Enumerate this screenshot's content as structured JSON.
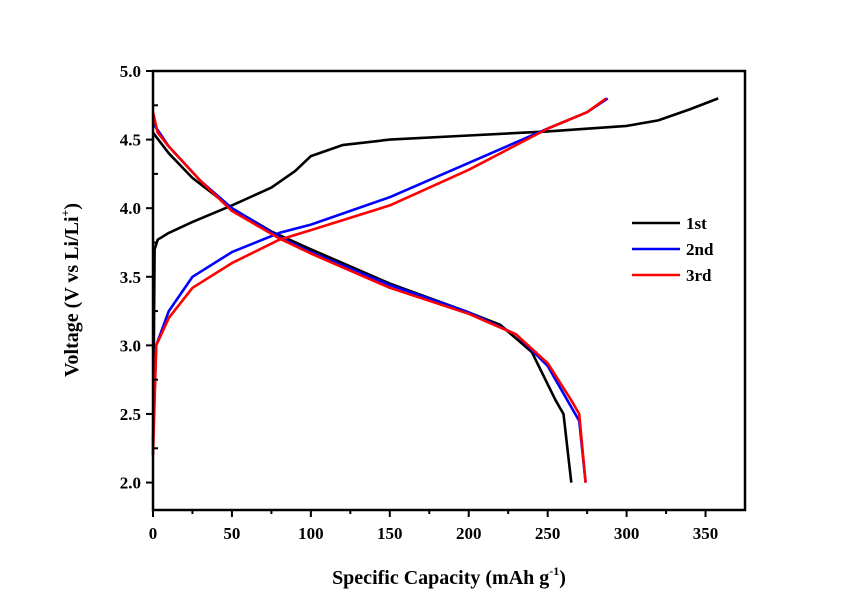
{
  "chart_data": {
    "type": "line",
    "title": "",
    "xlabel": "Specific Capacity (mAh g",
    "xlabel_sup": "-1",
    "xlabel_end": ")",
    "ylabel": "Voltage (V vs Li/Li",
    "ylabel_sup": "+",
    "ylabel_end": ")",
    "xlim": [
      0,
      375
    ],
    "ylim": [
      1.8,
      5.0
    ],
    "xticks": [
      0,
      50,
      100,
      150,
      200,
      250,
      300,
      350
    ],
    "yticks": [
      "2.0",
      "2.5",
      "3.0",
      "3.5",
      "4.0",
      "4.5",
      "5.0"
    ],
    "grid": false,
    "legend_position": "right",
    "series": [
      {
        "name": "1st",
        "color": "#000000",
        "charge": [
          [
            0,
            2.2
          ],
          [
            1,
            3.7
          ],
          [
            3,
            3.77
          ],
          [
            10,
            3.82
          ],
          [
            25,
            3.9
          ],
          [
            50,
            4.02
          ],
          [
            75,
            4.15
          ],
          [
            90,
            4.27
          ],
          [
            100,
            4.38
          ],
          [
            120,
            4.46
          ],
          [
            150,
            4.5
          ],
          [
            200,
            4.53
          ],
          [
            250,
            4.56
          ],
          [
            300,
            4.6
          ],
          [
            320,
            4.64
          ],
          [
            340,
            4.72
          ],
          [
            358,
            4.8
          ]
        ],
        "discharge": [
          [
            0,
            4.55
          ],
          [
            10,
            4.4
          ],
          [
            25,
            4.22
          ],
          [
            50,
            4.0
          ],
          [
            75,
            3.83
          ],
          [
            100,
            3.7
          ],
          [
            150,
            3.45
          ],
          [
            200,
            3.24
          ],
          [
            220,
            3.15
          ],
          [
            240,
            2.95
          ],
          [
            255,
            2.6
          ],
          [
            260,
            2.5
          ],
          [
            265,
            2.0
          ]
        ]
      },
      {
        "name": "2nd",
        "color": "#0000FF",
        "charge": [
          [
            0,
            2.3
          ],
          [
            2,
            3.0
          ],
          [
            10,
            3.25
          ],
          [
            25,
            3.5
          ],
          [
            50,
            3.68
          ],
          [
            80,
            3.82
          ],
          [
            100,
            3.88
          ],
          [
            150,
            4.08
          ],
          [
            200,
            4.33
          ],
          [
            250,
            4.58
          ],
          [
            275,
            4.7
          ],
          [
            288,
            4.8
          ]
        ],
        "discharge": [
          [
            0,
            4.62
          ],
          [
            10,
            4.45
          ],
          [
            30,
            4.2
          ],
          [
            50,
            4.0
          ],
          [
            80,
            3.79
          ],
          [
            100,
            3.68
          ],
          [
            150,
            3.44
          ],
          [
            200,
            3.24
          ],
          [
            230,
            3.08
          ],
          [
            250,
            2.85
          ],
          [
            265,
            2.55
          ],
          [
            270,
            2.45
          ],
          [
            274,
            2.0
          ]
        ]
      },
      {
        "name": "3rd",
        "color": "#FF0000",
        "charge": [
          [
            0,
            2.2
          ],
          [
            2,
            3.0
          ],
          [
            10,
            3.2
          ],
          [
            25,
            3.42
          ],
          [
            50,
            3.6
          ],
          [
            80,
            3.77
          ],
          [
            100,
            3.84
          ],
          [
            150,
            4.02
          ],
          [
            200,
            4.28
          ],
          [
            250,
            4.58
          ],
          [
            275,
            4.7
          ],
          [
            287,
            4.8
          ]
        ],
        "discharge": [
          [
            0,
            4.7
          ],
          [
            3,
            4.55
          ],
          [
            10,
            4.45
          ],
          [
            30,
            4.2
          ],
          [
            50,
            3.98
          ],
          [
            80,
            3.78
          ],
          [
            100,
            3.67
          ],
          [
            150,
            3.42
          ],
          [
            200,
            3.23
          ],
          [
            230,
            3.08
          ],
          [
            250,
            2.87
          ],
          [
            265,
            2.6
          ],
          [
            270,
            2.5
          ],
          [
            274,
            2.0
          ]
        ]
      }
    ]
  }
}
